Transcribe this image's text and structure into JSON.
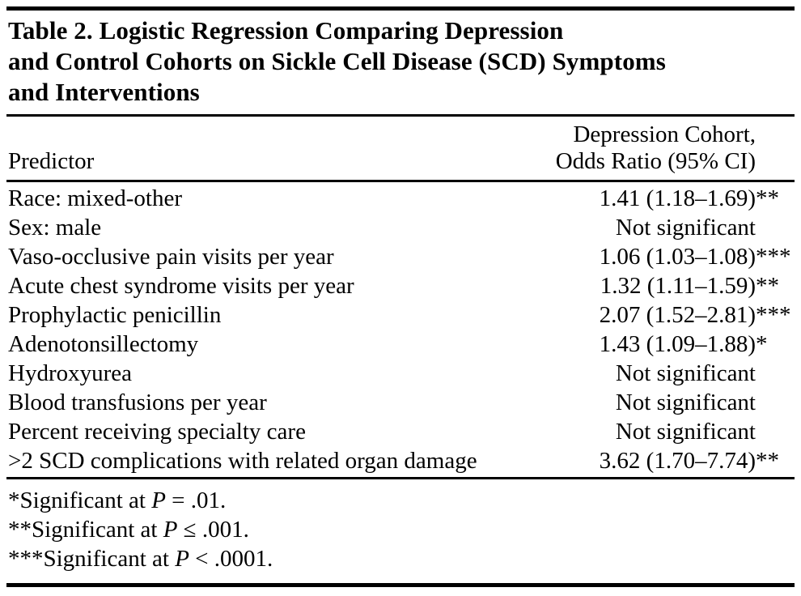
{
  "table": {
    "title": "Table 2. Logistic Regression Comparing Depression and Control Cohorts on Sickle Cell Disease (SCD) Symptoms and Interventions",
    "title_lines": [
      "Table 2. Logistic Regression Comparing Depression",
      "and Control Cohorts on Sickle Cell Disease (SCD) Symptoms",
      "and Interventions"
    ],
    "columns": {
      "predictor": "Predictor",
      "value_header_lines": [
        "Depression Cohort,",
        "Odds Ratio (95% CI)"
      ]
    },
    "rows": [
      {
        "predictor": "Race: mixed-other",
        "value": "1.41 (1.18–1.69)",
        "stars": "**"
      },
      {
        "predictor": "Sex: male",
        "value": "Not significant",
        "stars": ""
      },
      {
        "predictor": "Vaso-occlusive pain visits per year",
        "value": "1.06 (1.03–1.08)",
        "stars": "***"
      },
      {
        "predictor": "Acute chest syndrome visits per year",
        "value": "1.32 (1.11–1.59)",
        "stars": "**"
      },
      {
        "predictor": "Prophylactic penicillin",
        "value": "2.07 (1.52–2.81)",
        "stars": "***"
      },
      {
        "predictor": "Adenotonsillectomy",
        "value": "1.43 (1.09–1.88)",
        "stars": "*"
      },
      {
        "predictor": "Hydroxyurea",
        "value": "Not significant",
        "stars": ""
      },
      {
        "predictor": "Blood transfusions per year",
        "value": "Not significant",
        "stars": ""
      },
      {
        "predictor": "Percent receiving specialty care",
        "value": "Not significant",
        "stars": ""
      },
      {
        "predictor": ">2 SCD complications with related organ damage",
        "value": "3.62 (1.70–7.74)",
        "stars": "**"
      }
    ],
    "footnotes": [
      {
        "prefix": "*Significant at ",
        "p": "P",
        "rest": " = .01."
      },
      {
        "prefix": "**Significant at ",
        "p": "P",
        "rest": " ≤ .001."
      },
      {
        "prefix": "***Significant at ",
        "p": "P",
        "rest": " < .0001."
      }
    ]
  }
}
